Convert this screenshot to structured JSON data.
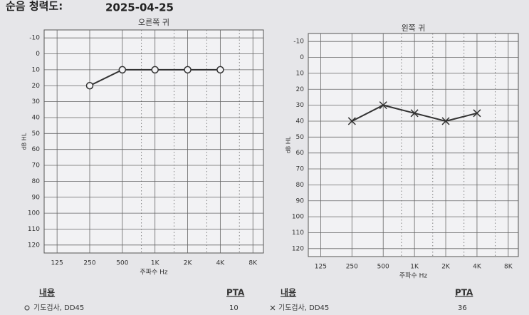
{
  "header": {
    "title": "순음 청력도:",
    "date": "2025-04-25"
  },
  "chart_data": [
    {
      "type": "line",
      "title": "오른쪽 귀",
      "x_label": "주파수 Hz",
      "y_label": "dB HL",
      "x": [
        250,
        500,
        1000,
        2000,
        4000
      ],
      "series": [
        {
          "name": "기도검사, DD45",
          "color": "#333333",
          "marker": "o",
          "values": [
            20,
            10,
            10,
            10,
            10
          ]
        }
      ],
      "x_log": true,
      "y_inverted": true,
      "xlim": [
        95,
        10000
      ],
      "ylim": [
        -15,
        125
      ],
      "xticks": [
        125,
        250,
        500,
        {
          "value": 1000,
          "label": "1K"
        },
        {
          "value": 2000,
          "label": "2K"
        },
        {
          "value": 4000,
          "label": "4K"
        },
        {
          "value": 8000,
          "label": "8K"
        }
      ],
      "minor_xticks": [
        750,
        1500,
        3000,
        6000
      ],
      "yticks": [
        -10,
        0,
        10,
        20,
        30,
        40,
        50,
        60,
        70,
        80,
        90,
        100,
        110,
        120
      ],
      "grid": true
    },
    {
      "type": "line",
      "title": "왼쪽 귀",
      "x_label": "주파수 Hz",
      "y_label": "dB HL",
      "x": [
        250,
        500,
        1000,
        2000,
        4000
      ],
      "series": [
        {
          "name": "기도검사, DD45",
          "color": "#333333",
          "marker": "x",
          "values": [
            40,
            30,
            35,
            40,
            35
          ]
        }
      ],
      "x_log": true,
      "y_inverted": true,
      "xlim": [
        95,
        10000
      ],
      "ylim": [
        -15,
        125
      ],
      "xticks": [
        125,
        250,
        500,
        {
          "value": 1000,
          "label": "1K"
        },
        {
          "value": 2000,
          "label": "2K"
        },
        {
          "value": 4000,
          "label": "4K"
        },
        {
          "value": 8000,
          "label": "8K"
        }
      ],
      "minor_xticks": [
        750,
        1500,
        3000,
        6000
      ],
      "yticks": [
        -10,
        0,
        10,
        20,
        30,
        40,
        50,
        60,
        70,
        80,
        90,
        100,
        110,
        120
      ],
      "grid": true
    }
  ],
  "footer": [
    {
      "heading": "내용",
      "pta_heading": "PTA",
      "pta": "10"
    },
    {
      "heading": "내용",
      "pta_heading": "PTA",
      "pta": "36"
    }
  ]
}
